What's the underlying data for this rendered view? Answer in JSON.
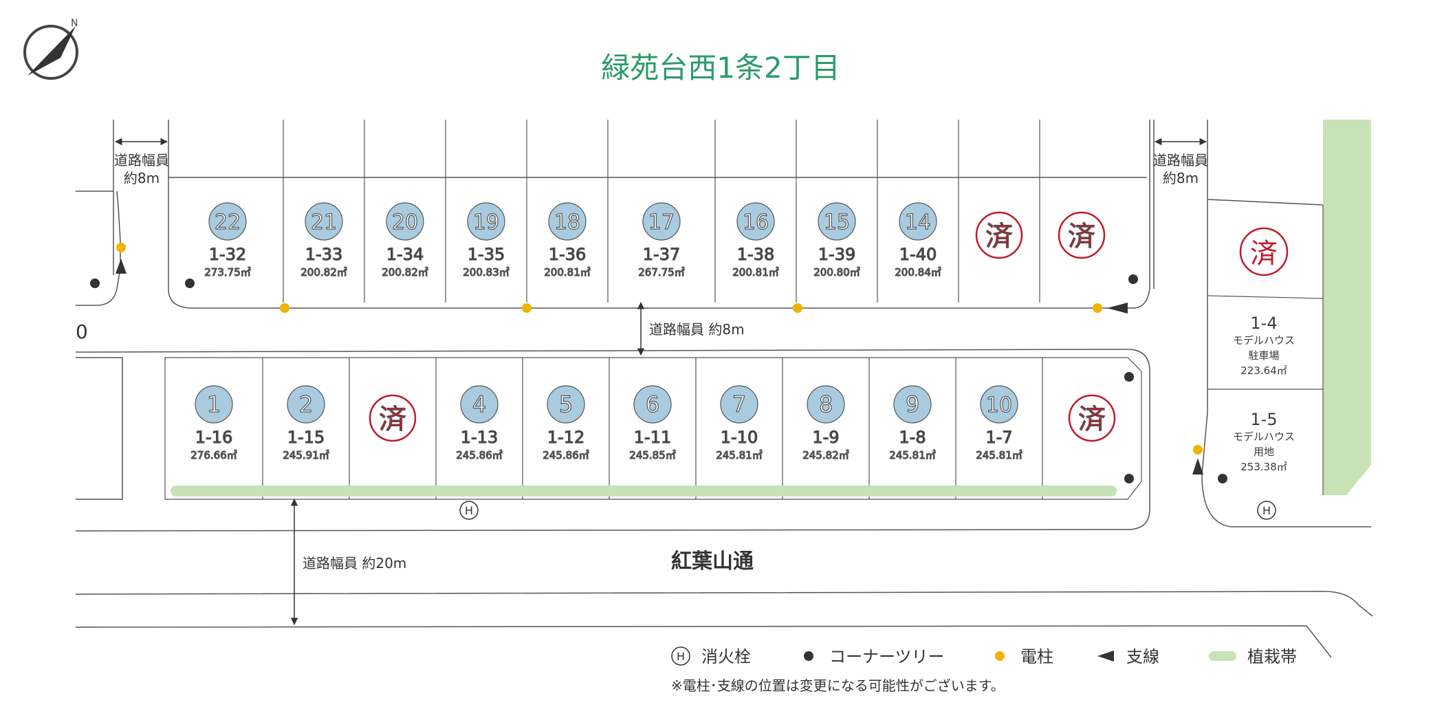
{
  "title": "緑苑台西1条2丁目",
  "colors": {
    "title_green": "#2a9a6c",
    "lot_circle": "#a9cbe0",
    "sold_red": "#c0192a",
    "pole_yellow": "#f0b400",
    "planting_green": "#c7e2b5",
    "line": "#555555"
  },
  "compass": {
    "icon": "compass-north-icon",
    "label": "N"
  },
  "roads": {
    "left_width": "道路幅員\n約8m",
    "left_width_l1": "道路幅員",
    "left_width_l2": "約8m",
    "right_width_l1": "道路幅員",
    "right_width_l2": "約8m",
    "middle_width": "道路幅員 約8m",
    "main_width": "道路幅員 約20m",
    "main_name": "紅葉山通",
    "edge_label": "0"
  },
  "north_lots": [
    {
      "no": "22",
      "lot": "1-32",
      "area": "273.75㎡"
    },
    {
      "no": "21",
      "lot": "1-33",
      "area": "200.82㎡"
    },
    {
      "no": "20",
      "lot": "1-34",
      "area": "200.82㎡"
    },
    {
      "no": "19",
      "lot": "1-35",
      "area": "200.83㎡"
    },
    {
      "no": "18",
      "lot": "1-36",
      "area": "200.81㎡"
    },
    {
      "no": "17",
      "lot": "1-37",
      "area": "267.75㎡"
    },
    {
      "no": "16",
      "lot": "1-38",
      "area": "200.81㎡"
    },
    {
      "no": "15",
      "lot": "1-39",
      "area": "200.80㎡"
    },
    {
      "no": "14",
      "lot": "1-40",
      "area": "200.84㎡"
    },
    {
      "sold": "済"
    },
    {
      "sold": "済"
    }
  ],
  "south_lots": [
    {
      "no": "1",
      "lot": "1-16",
      "area": "276.66㎡"
    },
    {
      "no": "2",
      "lot": "1-15",
      "area": "245.91㎡"
    },
    {
      "sold": "済"
    },
    {
      "no": "4",
      "lot": "1-13",
      "area": "245.86㎡"
    },
    {
      "no": "5",
      "lot": "1-12",
      "area": "245.86㎡"
    },
    {
      "no": "6",
      "lot": "1-11",
      "area": "245.85㎡"
    },
    {
      "no": "7",
      "lot": "1-10",
      "area": "245.81㎡"
    },
    {
      "no": "8",
      "lot": "1-9",
      "area": "245.82㎡"
    },
    {
      "no": "9",
      "lot": "1-8",
      "area": "245.81㎡"
    },
    {
      "no": "10",
      "lot": "1-7",
      "area": "245.81㎡"
    },
    {
      "sold": "済"
    }
  ],
  "east_lots": [
    {
      "sold": "済"
    },
    {
      "lot": "1-4",
      "sub1": "モデルハウス",
      "sub2": "駐車場",
      "area": "223.64㎡"
    },
    {
      "lot": "1-5",
      "sub1": "モデルハウス",
      "sub2": "用地",
      "area": "253.38㎡"
    }
  ],
  "hydrant_symbol": "H",
  "legend": [
    {
      "icon": "fire-hydrant-icon",
      "label": "消火栓"
    },
    {
      "icon": "corner-tree-icon",
      "label": "コーナーツリー"
    },
    {
      "icon": "utility-pole-icon",
      "label": "電柱"
    },
    {
      "icon": "guy-wire-icon",
      "label": "支線"
    },
    {
      "icon": "planting-strip-icon",
      "label": "植栽帯"
    }
  ],
  "note": "※電柱･支線の位置は変更になる可能性がございます。"
}
